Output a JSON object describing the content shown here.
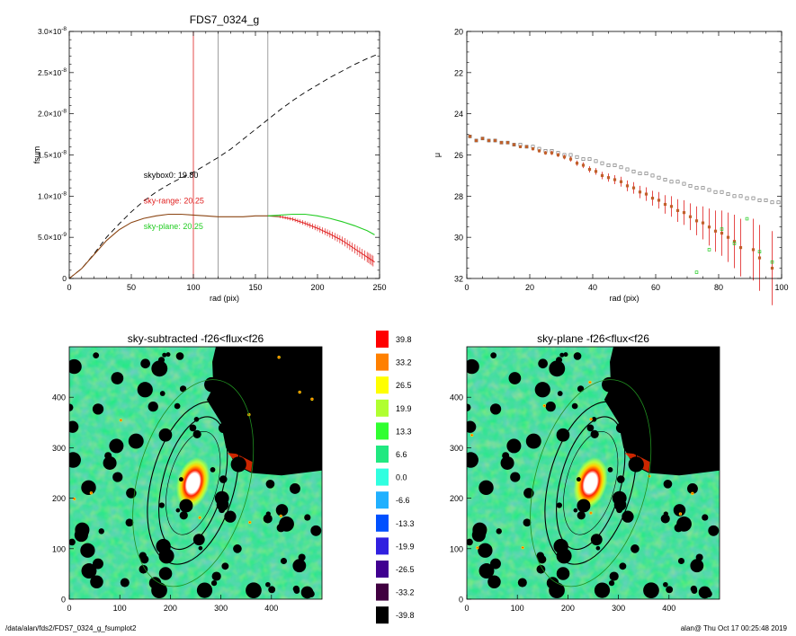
{
  "footer": {
    "left": "/data/alan/fds2/FDS7_0324_g_fsumplot2",
    "right": "alan@  Thu Oct 17 00:25:48 2019"
  },
  "colors": {
    "curve": "#8b4513",
    "red": "#e02020",
    "green": "#22cc22",
    "dashed": "#000000",
    "grey_line": "#888888"
  },
  "chart_data": [
    {
      "type": "line",
      "title": "FDS7_0324_g",
      "xlabel": "rad (pix)",
      "ylabel": "fsum",
      "xlim": [
        0,
        250
      ],
      "ylim": [
        0,
        3e-08
      ],
      "xticks": [
        "0",
        "50",
        "100",
        "150",
        "200",
        "250"
      ],
      "yticks": [
        {
          "mant": "0",
          "exp": ""
        },
        {
          "mant": "5.0×10",
          "exp": "-9"
        },
        {
          "mant": "1.0×10",
          "exp": "-8"
        },
        {
          "mant": "1.5×10",
          "exp": "-8"
        },
        {
          "mant": "2.0×10",
          "exp": "-8"
        },
        {
          "mant": "2.5×10",
          "exp": "-8"
        },
        {
          "mant": "3.0×10",
          "exp": "-8"
        }
      ],
      "vlines": [
        {
          "x": 100,
          "color": "red"
        },
        {
          "x": 120,
          "color": "grey"
        },
        {
          "x": 160,
          "color": "grey"
        }
      ],
      "annotations": [
        {
          "text": "skybox0: 19.80",
          "color": "black",
          "x": 60,
          "y": 1.22e-08
        },
        {
          "text": "sky-range: 20.25",
          "color": "red",
          "x": 60,
          "y": 9.1e-09
        },
        {
          "text": "sky-plane: 20.25",
          "color": "green",
          "x": 60,
          "y": 6e-09
        }
      ],
      "series": [
        {
          "style": "dashed",
          "color": "black",
          "x": [
            0,
            10,
            20,
            30,
            40,
            50,
            60,
            70,
            80,
            90,
            100,
            110,
            120,
            130,
            140,
            150,
            160,
            170,
            180,
            190,
            200,
            210,
            220,
            230,
            240,
            248
          ],
          "y": [
            0,
            1.2e-09,
            3e-09,
            5e-09,
            6.6e-09,
            8.1e-09,
            9.4e-09,
            1.05e-08,
            1.14e-08,
            1.22e-08,
            1.29e-08,
            1.38e-08,
            1.47e-08,
            1.57e-08,
            1.69e-08,
            1.81e-08,
            1.93e-08,
            2.05e-08,
            2.16e-08,
            2.26e-08,
            2.35e-08,
            2.44e-08,
            2.52e-08,
            2.6e-08,
            2.67e-08,
            2.72e-08
          ]
        },
        {
          "style": "solid",
          "color": "brown",
          "x": [
            0,
            10,
            20,
            30,
            40,
            50,
            60,
            70,
            80,
            90,
            100,
            110,
            120,
            130,
            140,
            150,
            160,
            170
          ],
          "y": [
            0,
            1.2e-09,
            2.9e-09,
            4.6e-09,
            5.9e-09,
            6.8e-09,
            7.3e-09,
            7.6e-09,
            7.8e-09,
            7.8e-09,
            7.7e-09,
            7.6e-09,
            7.5e-09,
            7.5e-09,
            7.5e-09,
            7.6e-09,
            7.6e-09,
            7.5e-09
          ]
        },
        {
          "style": "errorbars",
          "color": "red",
          "x": [
            170,
            180,
            190,
            200,
            210,
            220,
            230,
            240,
            246
          ],
          "y": [
            7.5e-09,
            7.2e-09,
            6.7e-09,
            6.1e-09,
            5.4e-09,
            4.6e-09,
            3.6e-09,
            2.6e-09,
            2e-09
          ]
        },
        {
          "style": "solid",
          "color": "green",
          "x": [
            160,
            170,
            180,
            190,
            200,
            210,
            220,
            230,
            240,
            246
          ],
          "y": [
            7.6e-09,
            7.7e-09,
            7.8e-09,
            7.8e-09,
            7.6e-09,
            7.3e-09,
            6.9e-09,
            6.4e-09,
            5.8e-09,
            5.3e-09
          ]
        }
      ]
    },
    {
      "type": "scatter",
      "title": "",
      "xlabel": "rad (pix)",
      "ylabel": "μ",
      "xlim": [
        0,
        100
      ],
      "ylim": [
        32,
        20
      ],
      "xticks": [
        "0",
        "20",
        "40",
        "60",
        "80",
        "100"
      ],
      "yticks": [
        "20",
        "22",
        "24",
        "26",
        "28",
        "30",
        "32"
      ],
      "series": [
        {
          "marker": "open-square",
          "color": "grey",
          "x": [
            1,
            3,
            5,
            7,
            9,
            11,
            13,
            15,
            17,
            19,
            21,
            23,
            25,
            27,
            29,
            31,
            33,
            35,
            37,
            39,
            41,
            43,
            45,
            47,
            49,
            51,
            53,
            55,
            57,
            59,
            61,
            63,
            65,
            67,
            69,
            71,
            73,
            75,
            77,
            79,
            81,
            83,
            85,
            87,
            89,
            91,
            93,
            95,
            97,
            99
          ],
          "y": [
            25.1,
            25.3,
            25.2,
            25.3,
            25.3,
            25.4,
            25.4,
            25.5,
            25.5,
            25.6,
            25.6,
            25.7,
            25.8,
            25.8,
            25.9,
            26.0,
            26.0,
            26.1,
            26.2,
            26.2,
            26.3,
            26.4,
            26.5,
            26.5,
            26.6,
            26.7,
            26.8,
            26.9,
            26.9,
            27.0,
            27.1,
            27.2,
            27.3,
            27.3,
            27.4,
            27.5,
            27.6,
            27.6,
            27.7,
            27.8,
            27.8,
            27.9,
            28.0,
            28.0,
            28.1,
            28.1,
            28.2,
            28.2,
            28.3,
            28.3
          ]
        },
        {
          "marker": "filled-square-errorbar",
          "color": "red",
          "x": [
            1,
            3,
            5,
            7,
            9,
            11,
            13,
            15,
            17,
            19,
            21,
            23,
            25,
            27,
            29,
            31,
            33,
            35,
            37,
            39,
            41,
            43,
            45,
            47,
            49,
            51,
            53,
            55,
            57,
            59,
            61,
            63,
            65,
            67,
            69,
            71,
            73,
            75,
            77,
            79,
            81,
            83,
            85,
            87,
            91,
            93,
            97
          ],
          "y": [
            25.1,
            25.3,
            25.2,
            25.3,
            25.3,
            25.4,
            25.4,
            25.5,
            25.6,
            25.6,
            25.7,
            25.8,
            25.9,
            25.9,
            26.0,
            26.1,
            26.2,
            26.4,
            26.5,
            26.7,
            26.8,
            27.0,
            27.1,
            27.2,
            27.3,
            27.5,
            27.6,
            27.8,
            27.9,
            28.1,
            28.2,
            28.4,
            28.5,
            28.7,
            28.8,
            29.0,
            29.2,
            29.3,
            29.5,
            29.7,
            29.8,
            30.0,
            30.2,
            30.5,
            30.6,
            31.0,
            31.5
          ],
          "err": [
            0.05,
            0.05,
            0.05,
            0.05,
            0.05,
            0.06,
            0.06,
            0.06,
            0.07,
            0.07,
            0.08,
            0.08,
            0.09,
            0.1,
            0.1,
            0.11,
            0.12,
            0.13,
            0.14,
            0.15,
            0.16,
            0.18,
            0.2,
            0.22,
            0.24,
            0.26,
            0.28,
            0.3,
            0.33,
            0.36,
            0.4,
            0.45,
            0.5,
            0.55,
            0.6,
            0.65,
            0.7,
            0.8,
            0.9,
            1.0,
            1.1,
            1.2,
            1.3,
            1.4,
            1.5,
            1.6,
            1.8
          ]
        },
        {
          "marker": "open-square",
          "color": "green",
          "x": [
            73,
            77,
            81,
            85,
            89,
            93,
            97
          ],
          "y": [
            31.7,
            30.6,
            29.6,
            30.3,
            29.1,
            30.7,
            31.2
          ]
        }
      ]
    },
    {
      "type": "heatmap",
      "title": "sky-subtracted -f26<flux<f26",
      "xlim": [
        0,
        500
      ],
      "ylim": [
        0,
        500
      ],
      "xticks": [
        "0",
        "100",
        "200",
        "300",
        "400"
      ],
      "yticks": [
        "0",
        "100",
        "200",
        "300",
        "400"
      ]
    },
    {
      "type": "heatmap",
      "title": "sky-plane -f26<flux<f26",
      "xlim": [
        0,
        500
      ],
      "ylim": [
        0,
        500
      ],
      "xticks": [
        "0",
        "100",
        "200",
        "300",
        "400"
      ],
      "yticks": [
        "0",
        "100",
        "200",
        "300",
        "400"
      ]
    },
    {
      "type": "colorbar",
      "labels": [
        "39.8",
        "33.2",
        "26.5",
        "19.9",
        "13.3",
        "6.6",
        "0.0",
        "-6.6",
        "-13.3",
        "-19.9",
        "-26.5",
        "-33.2",
        "-39.8"
      ],
      "colors": [
        "#ff0000",
        "#ff8000",
        "#ffff00",
        "#b0ff30",
        "#30ff30",
        "#20e880",
        "#30ffe0",
        "#20b0ff",
        "#0050ff",
        "#3020e0",
        "#400090",
        "#400040",
        "#000000"
      ]
    }
  ]
}
